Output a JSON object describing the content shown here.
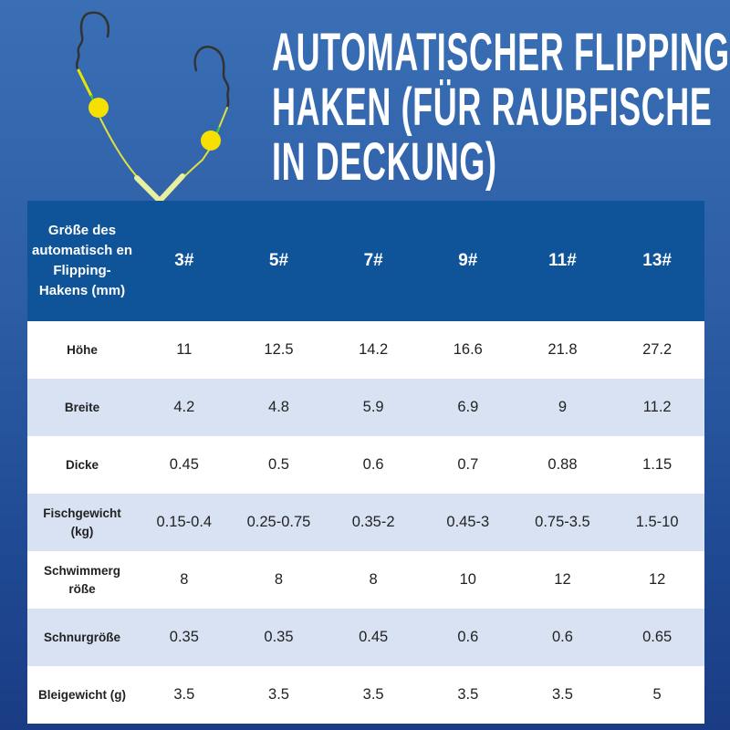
{
  "title_lines": [
    "AUTOMATISCHER FLIPPING-",
    "HAKEN (FÜR RAUBFISCHE",
    "IN DECKUNG)"
  ],
  "colors": {
    "header": "#0f5499",
    "row_alt": "#d9e2f3",
    "background": "#2d5ea6",
    "float": "#f5e000"
  },
  "table": {
    "header_label": "Größe des automatisch en Flipping-Hakens (mm)",
    "sizes": [
      "3#",
      "5#",
      "7#",
      "9#",
      "11#",
      "13#"
    ],
    "rows": [
      {
        "label": "Höhe",
        "values": [
          "11",
          "12.5",
          "14.2",
          "16.6",
          "21.8",
          "27.2"
        ]
      },
      {
        "label": "Breite",
        "values": [
          "4.2",
          "4.8",
          "5.9",
          "6.9",
          "9",
          "11.2"
        ]
      },
      {
        "label": "Dicke",
        "values": [
          "0.45",
          "0.5",
          "0.6",
          "0.7",
          "0.88",
          "1.15"
        ]
      },
      {
        "label": "Fischgewicht (kg)",
        "values": [
          "0.15-0.4",
          "0.25-0.75",
          "0.35-2",
          "0.45-3",
          "0.75-3.5",
          "1.5-10"
        ]
      },
      {
        "label": "Schwimmerg röße",
        "values": [
          "8",
          "8",
          "8",
          "10",
          "12",
          "12"
        ]
      },
      {
        "label": "Schnurgröße",
        "values": [
          "0.35",
          "0.35",
          "0.45",
          "0.6",
          "0.6",
          "0.65"
        ]
      },
      {
        "label": "Bleigewicht (g)",
        "values": [
          "3.5",
          "3.5",
          "3.5",
          "3.5",
          "3.5",
          "5"
        ]
      }
    ]
  }
}
